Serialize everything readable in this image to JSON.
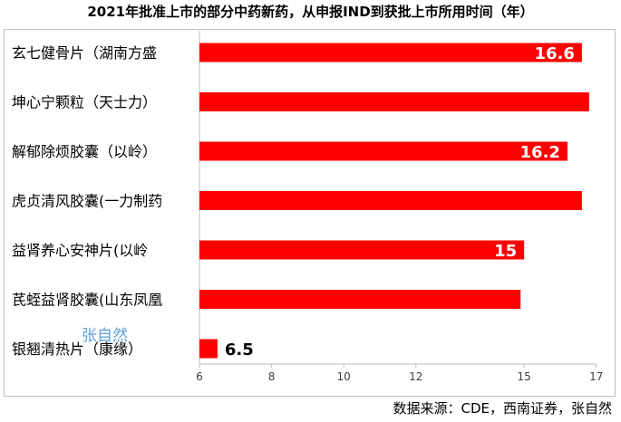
{
  "title": "2021年批准上市的部分中药新药，从申报IND到获批上市所用时间（年）",
  "source": "数据来源：CDE，西南证券，张自然",
  "watermark": "张自然",
  "colors": {
    "bar": "#ff0000",
    "axis": "#bfbfbf",
    "text": "#000000"
  },
  "chart_data": {
    "type": "bar",
    "orientation": "horizontal",
    "categories": [
      "玄七健骨片（湖南方盛",
      "坤心宁颗粒（天士力）",
      "解郁除烦胶囊（以岭）",
      "虎贞清风胶囊(一力制药",
      "益肾养心安神片(以岭",
      "芪蛭益肾胶囊(山东凤凰",
      "银翘清热片（康缘）"
    ],
    "values": [
      16.6,
      16.8,
      16.2,
      16.6,
      15,
      14.9,
      6.5
    ],
    "data_labels": [
      "16.6",
      "",
      "16.2",
      "",
      "15",
      "",
      "6.5"
    ],
    "xlim": [
      6,
      17
    ],
    "xticks": [
      "6",
      "8",
      "10",
      "12",
      "15",
      "17"
    ],
    "xtick_values": [
      6,
      8,
      10,
      12,
      15,
      17
    ]
  }
}
